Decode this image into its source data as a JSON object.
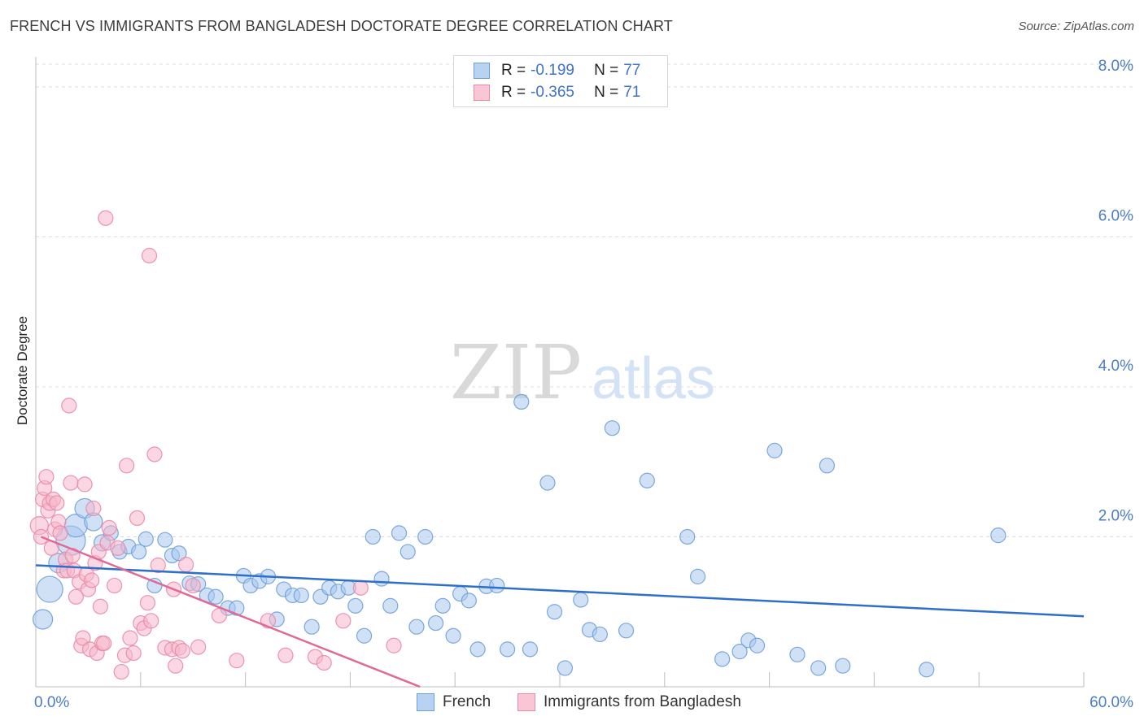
{
  "title": "FRENCH VS IMMIGRANTS FROM BANGLADESH DOCTORATE DEGREE CORRELATION CHART",
  "source": "Source: ZipAtlas.com",
  "watermark": {
    "zip": "ZIP",
    "atlas": "atlas"
  },
  "legend": {
    "rows": [
      {
        "r_label": "R =",
        "r_value": "-0.199",
        "n_label": "N =",
        "n_value": "77"
      },
      {
        "r_label": "R =",
        "r_value": "-0.365",
        "n_label": "N =",
        "n_value": "71"
      }
    ]
  },
  "chart_data": {
    "type": "scatter",
    "ylabel": "Doctorate Degree",
    "xlim": [
      0,
      60
    ],
    "ylim": [
      0,
      8.4
    ],
    "x_tick_labels": [
      "0.0%",
      "60.0%"
    ],
    "y_ticks": [
      2,
      4,
      6,
      8
    ],
    "y_tick_labels": [
      "2.0%",
      "4.0%",
      "6.0%",
      "8.0%"
    ],
    "grid": true,
    "series": [
      {
        "name": "French",
        "color": "#a9c8ee",
        "stroke": "#6e9fd8",
        "line_color": "#2f6fcc",
        "trend": {
          "x": [
            0,
            60
          ],
          "y": [
            1.62,
            0.94
          ]
        },
        "points": [
          [
            0.4,
            0.9,
            12
          ],
          [
            0.8,
            1.3,
            16
          ],
          [
            1.3,
            1.65,
            12
          ],
          [
            2.0,
            1.95,
            18
          ],
          [
            2.3,
            2.15,
            14
          ],
          [
            2.8,
            2.38,
            12
          ],
          [
            3.3,
            2.2,
            11
          ],
          [
            3.8,
            1.92,
            10
          ],
          [
            4.3,
            2.05,
            9
          ],
          [
            4.8,
            1.8,
            9
          ],
          [
            5.3,
            1.87,
            9
          ],
          [
            5.9,
            1.8,
            9
          ],
          [
            6.3,
            1.97,
            9
          ],
          [
            6.8,
            1.35,
            9
          ],
          [
            7.4,
            1.96,
            9
          ],
          [
            7.8,
            1.75,
            9
          ],
          [
            8.2,
            1.78,
            9
          ],
          [
            8.8,
            1.38,
            9
          ],
          [
            9.3,
            1.37,
            9
          ],
          [
            9.8,
            1.22,
            9
          ],
          [
            10.3,
            1.2,
            9
          ],
          [
            11.0,
            1.05,
            9
          ],
          [
            11.5,
            1.05,
            9
          ],
          [
            11.9,
            1.48,
            9
          ],
          [
            12.3,
            1.35,
            9
          ],
          [
            12.8,
            1.41,
            9
          ],
          [
            13.3,
            1.47,
            9
          ],
          [
            13.8,
            0.9,
            9
          ],
          [
            14.2,
            1.3,
            9
          ],
          [
            14.7,
            1.22,
            9
          ],
          [
            15.2,
            1.22,
            9
          ],
          [
            15.8,
            0.8,
            9
          ],
          [
            16.3,
            1.2,
            9
          ],
          [
            16.8,
            1.32,
            9
          ],
          [
            17.3,
            1.27,
            9
          ],
          [
            17.9,
            1.32,
            9
          ],
          [
            18.3,
            1.08,
            9
          ],
          [
            18.8,
            0.68,
            9
          ],
          [
            19.3,
            2.0,
            9
          ],
          [
            19.8,
            1.44,
            9
          ],
          [
            20.3,
            1.08,
            9
          ],
          [
            20.8,
            2.05,
            9
          ],
          [
            21.3,
            1.8,
            9
          ],
          [
            21.8,
            0.8,
            9
          ],
          [
            22.3,
            2.0,
            9
          ],
          [
            22.9,
            0.85,
            9
          ],
          [
            23.3,
            1.08,
            9
          ],
          [
            23.9,
            0.68,
            9
          ],
          [
            24.3,
            1.24,
            9
          ],
          [
            24.8,
            1.15,
            9
          ],
          [
            25.3,
            0.5,
            9
          ],
          [
            25.8,
            1.34,
            9
          ],
          [
            26.4,
            1.35,
            9
          ],
          [
            27.0,
            0.5,
            9
          ],
          [
            27.8,
            3.8,
            9
          ],
          [
            28.3,
            0.5,
            9
          ],
          [
            29.3,
            2.72,
            9
          ],
          [
            29.7,
            1.0,
            9
          ],
          [
            30.3,
            0.25,
            9
          ],
          [
            31.2,
            1.16,
            9
          ],
          [
            31.7,
            0.76,
            9
          ],
          [
            32.3,
            0.7,
            9
          ],
          [
            33.0,
            3.45,
            9
          ],
          [
            33.8,
            0.75,
            9
          ],
          [
            35.0,
            2.75,
            9
          ],
          [
            37.3,
            2.0,
            9
          ],
          [
            37.9,
            1.47,
            9
          ],
          [
            39.3,
            0.37,
            9
          ],
          [
            40.3,
            0.47,
            9
          ],
          [
            40.8,
            0.62,
            9
          ],
          [
            41.3,
            0.55,
            9
          ],
          [
            42.3,
            3.15,
            9
          ],
          [
            43.6,
            0.43,
            9
          ],
          [
            44.8,
            0.25,
            9
          ],
          [
            45.3,
            2.95,
            9
          ],
          [
            46.2,
            0.28,
            9
          ],
          [
            51.0,
            0.23,
            9
          ],
          [
            55.1,
            2.02,
            9
          ]
        ]
      },
      {
        "name": "Immigrants from Bangladesh",
        "color": "#f6b7cb",
        "stroke": "#e98aa8",
        "line_color": "#e06a96",
        "trend": {
          "x": [
            0.3,
            22
          ],
          "y": [
            2.0,
            0.0
          ]
        },
        "points": [
          [
            0.2,
            2.15,
            11
          ],
          [
            0.3,
            2.0,
            9
          ],
          [
            0.4,
            2.5,
            9
          ],
          [
            0.5,
            2.65,
            9
          ],
          [
            0.6,
            2.8,
            9
          ],
          [
            0.7,
            2.35,
            9
          ],
          [
            0.8,
            2.45,
            9
          ],
          [
            0.9,
            1.85,
            9
          ],
          [
            1.0,
            2.5,
            9
          ],
          [
            1.1,
            2.1,
            9
          ],
          [
            1.2,
            2.45,
            9
          ],
          [
            1.3,
            2.2,
            9
          ],
          [
            1.4,
            2.05,
            9
          ],
          [
            1.6,
            1.55,
            9
          ],
          [
            1.7,
            1.7,
            9
          ],
          [
            1.8,
            1.55,
            9
          ],
          [
            1.9,
            3.75,
            9
          ],
          [
            2.0,
            2.72,
            9
          ],
          [
            2.1,
            1.75,
            9
          ],
          [
            2.2,
            1.55,
            9
          ],
          [
            2.3,
            1.2,
            9
          ],
          [
            2.5,
            1.4,
            9
          ],
          [
            2.6,
            0.55,
            9
          ],
          [
            2.7,
            0.65,
            9
          ],
          [
            2.8,
            2.7,
            9
          ],
          [
            2.9,
            1.5,
            9
          ],
          [
            3.0,
            1.3,
            9
          ],
          [
            3.1,
            0.5,
            9
          ],
          [
            3.2,
            1.42,
            9
          ],
          [
            3.3,
            2.38,
            9
          ],
          [
            3.4,
            1.65,
            9
          ],
          [
            3.5,
            0.45,
            9
          ],
          [
            3.6,
            1.8,
            9
          ],
          [
            3.7,
            1.07,
            9
          ],
          [
            3.8,
            0.58,
            9
          ],
          [
            3.9,
            0.58,
            9
          ],
          [
            4.0,
            6.25,
            9
          ],
          [
            4.1,
            1.92,
            9
          ],
          [
            4.2,
            2.12,
            9
          ],
          [
            4.5,
            1.35,
            9
          ],
          [
            4.7,
            1.85,
            9
          ],
          [
            4.9,
            0.2,
            9
          ],
          [
            5.1,
            0.42,
            9
          ],
          [
            5.2,
            2.95,
            9
          ],
          [
            5.4,
            0.65,
            9
          ],
          [
            5.6,
            0.45,
            9
          ],
          [
            5.8,
            2.25,
            9
          ],
          [
            6.0,
            0.85,
            9
          ],
          [
            6.2,
            0.78,
            9
          ],
          [
            6.4,
            1.12,
            9
          ],
          [
            6.5,
            5.75,
            9
          ],
          [
            6.6,
            0.88,
            9
          ],
          [
            6.8,
            3.1,
            9
          ],
          [
            7.0,
            1.62,
            9
          ],
          [
            7.4,
            0.52,
            9
          ],
          [
            7.8,
            0.5,
            9
          ],
          [
            7.9,
            1.3,
            9
          ],
          [
            8.0,
            0.28,
            9
          ],
          [
            8.2,
            0.52,
            9
          ],
          [
            8.4,
            0.48,
            9
          ],
          [
            8.6,
            1.63,
            9
          ],
          [
            9.0,
            1.35,
            9
          ],
          [
            9.3,
            0.53,
            9
          ],
          [
            10.5,
            0.95,
            9
          ],
          [
            11.5,
            0.35,
            9
          ],
          [
            13.3,
            0.88,
            9
          ],
          [
            14.3,
            0.42,
            9
          ],
          [
            16.0,
            0.4,
            9
          ],
          [
            16.5,
            0.32,
            9
          ],
          [
            17.6,
            0.88,
            9
          ],
          [
            18.6,
            1.32,
            9
          ],
          [
            20.5,
            0.55,
            9
          ]
        ]
      }
    ]
  }
}
